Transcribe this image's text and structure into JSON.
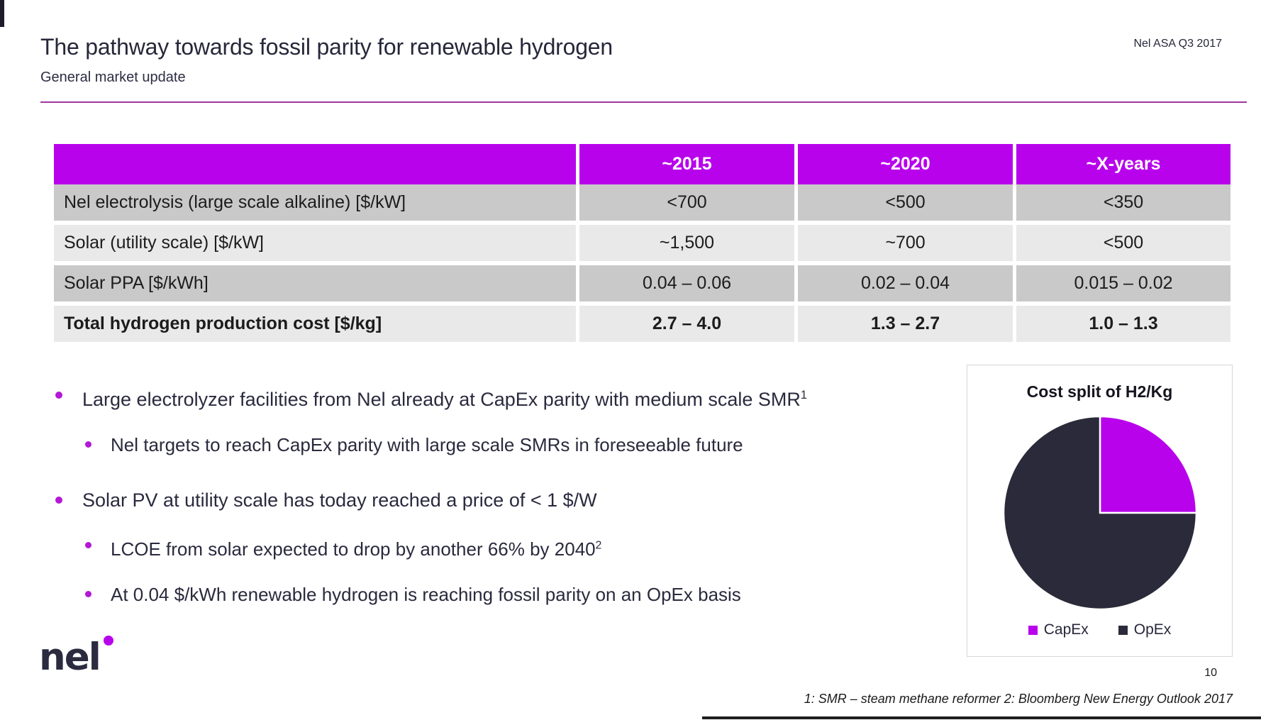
{
  "slide": {
    "title": "The pathway towards fossil parity for renewable hydrogen",
    "subtitle": "General market update",
    "header_right": "Nel ASA Q3 2017",
    "page_number": "10",
    "footnote": "1: SMR – steam methane reformer 2: Bloomberg New Energy Outlook 2017",
    "logo_text": "nel"
  },
  "table": {
    "columns": [
      "",
      "~2015",
      "~2020",
      "~X-years"
    ],
    "rows": [
      {
        "label": "Nel electrolysis (large scale alkaline) [$/kW]",
        "values": [
          "<700",
          "<500",
          "<350"
        ],
        "bold": false
      },
      {
        "label": "Solar (utility scale) [$/kW]",
        "values": [
          "~1,500",
          "~700",
          "<500"
        ],
        "bold": false
      },
      {
        "label": "Solar PPA [$/kWh]",
        "values": [
          "0.04 – 0.06",
          "0.02 – 0.04",
          "0.015 – 0.02"
        ],
        "bold": false
      },
      {
        "label": "Total hydrogen production cost [$/kg]",
        "values": [
          "2.7 – 4.0",
          "1.3 – 2.7",
          "1.0 – 1.3"
        ],
        "bold": true
      }
    ]
  },
  "bullets": [
    {
      "level": 1,
      "text": "Large electrolyzer facilities from Nel already at CapEx parity with medium scale SMR",
      "superscript": "1"
    },
    {
      "level": 2,
      "text": "Nel targets to reach CapEx parity with large scale SMRs in foreseeable future",
      "superscript": ""
    },
    {
      "level": 1,
      "text": "Solar PV at utility scale has today reached a price of < 1 $/W",
      "superscript": ""
    },
    {
      "level": 2,
      "text": "LCOE from solar expected to drop by another 66% by 2040",
      "superscript": "2"
    },
    {
      "level": 2,
      "text": "At 0.04 $/kWh renewable hydrogen is reaching fossil parity on an OpEx basis",
      "superscript": ""
    }
  ],
  "chart_data": {
    "type": "pie",
    "title": "Cost split of H2/Kg",
    "slices": [
      {
        "label": "CapEx",
        "value": 25,
        "color": "#b802ec"
      },
      {
        "label": "OpEx",
        "value": 75,
        "color": "#2a2a3a"
      }
    ],
    "legend_position": "bottom",
    "start_angle_deg": -90,
    "direction": "clockwise"
  },
  "colors": {
    "accent_magenta": "#b802ec",
    "divider_purple": "#a0379f",
    "pie_dark": "#2a2a3a",
    "table_row_dark": "#c9c9c9",
    "table_row_light": "#e9e9e9"
  }
}
